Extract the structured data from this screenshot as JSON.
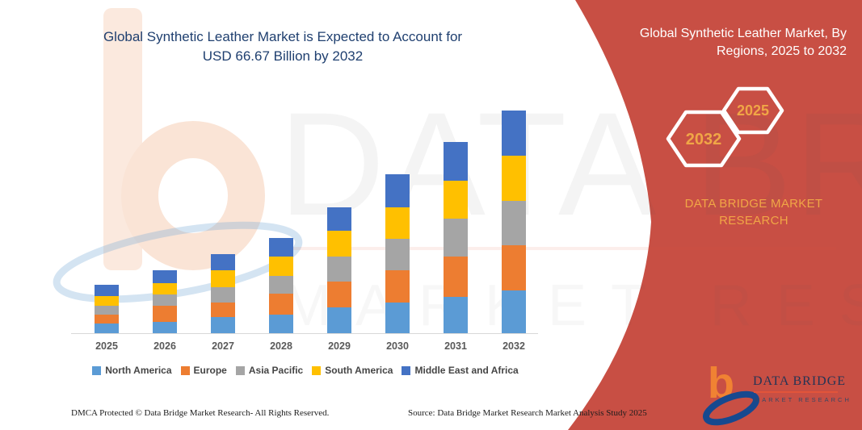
{
  "colors": {
    "banner_red": "#C84F44",
    "title_navy": "#204070",
    "gold": "#F0A646",
    "axis_gray": "#595959",
    "legend_text": "#454545",
    "logo_orange": "#F08233",
    "logo_navy": "#253455"
  },
  "chart_title": "Global Synthetic Leather Market is Expected to Account for\nUSD 66.67 Billion by 2032",
  "panel": {
    "title": "Global Synthetic Leather Market, By\nRegions, 2025 to 2032",
    "badge_start_year": "2025",
    "badge_end_year": "2032",
    "brand": "DATA BRIDGE MARKET\nRESEARCH"
  },
  "watermark": {
    "big_text": "DATA BRIDGE",
    "small_text": "MARKET RESEARCH"
  },
  "logo": {
    "glyph": "b",
    "name": "DATA BRIDGE",
    "subtitle": "MARKET RESEARCH"
  },
  "footer": {
    "left": "DMCA Protected © Data Bridge Market Research-  All Rights Reserved.",
    "right": "Source: Data Bridge Market Research  Market Analysis Study 2025"
  },
  "chart_data": {
    "type": "bar",
    "subtype": "stacked-vertical",
    "title": "Global Synthetic Leather Market is Expected to Account for USD 66.67 Billion by 2032",
    "unit": "USD Billion (estimated from bar heights; no y-axis shown)",
    "categories": [
      "2025",
      "2026",
      "2027",
      "2028",
      "2029",
      "2030",
      "2031",
      "2032"
    ],
    "series": [
      {
        "name": "North America",
        "color": "#5B9BD5",
        "values": [
          3.2,
          3.7,
          5.0,
          5.7,
          7.9,
          9.4,
          11.1,
          13.1
        ]
      },
      {
        "name": "Europe",
        "color": "#ED7D31",
        "values": [
          2.7,
          4.7,
          4.3,
          6.3,
          7.7,
          9.6,
          12.0,
          13.4
        ]
      },
      {
        "name": "Asia Pacific",
        "color": "#A5A5A5",
        "values": [
          2.6,
          3.3,
          4.7,
          5.3,
          7.5,
          9.4,
          11.4,
          13.3
        ]
      },
      {
        "name": "South America",
        "color": "#FFC000",
        "values": [
          2.9,
          3.5,
          4.9,
          5.9,
          7.6,
          9.3,
          11.2,
          13.4
        ]
      },
      {
        "name": "Middle East and Africa",
        "color": "#4472C4",
        "values": [
          3.2,
          3.9,
          4.8,
          5.5,
          7.1,
          10.0,
          11.5,
          13.5
        ]
      }
    ],
    "totals": [
      14.6,
      19.1,
      23.7,
      28.7,
      37.8,
      47.7,
      57.2,
      66.7
    ],
    "xlabel": "",
    "ylabel": "",
    "y_axis_visible": false,
    "gridlines": false,
    "legend_position": "bottom"
  }
}
